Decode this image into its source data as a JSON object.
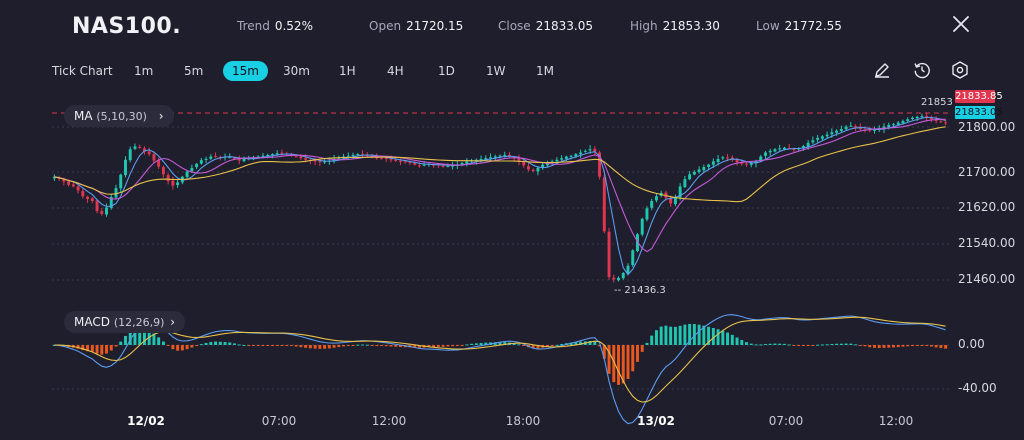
{
  "header": {
    "symbol": "NAS100.",
    "stats": [
      {
        "key": "Trend",
        "value": "0.52%"
      },
      {
        "key": "Open",
        "value": "21720.15"
      },
      {
        "key": "Close",
        "value": "21833.05"
      },
      {
        "key": "High",
        "value": "21853.30"
      },
      {
        "key": "Low",
        "value": "21772.55"
      }
    ]
  },
  "toolbar": {
    "chart_mode": "Tick Chart",
    "timeframes": [
      "1m",
      "5m",
      "15m",
      "30m",
      "1H",
      "4H",
      "1D",
      "1W",
      "1M"
    ],
    "active_timeframe": "15m",
    "icons": [
      "draw-pencil-icon",
      "reset-clock-icon",
      "settings-hex-icon"
    ]
  },
  "indicators": {
    "ma": {
      "name": "MA",
      "params": "(5,10,30)"
    },
    "macd": {
      "name": "MACD",
      "params": "(12,26,9)"
    }
  },
  "colors": {
    "up": "#1fc7b1",
    "down": "#e0364f",
    "ma5": "#5b9cf0",
    "ma10": "#c45ad8",
    "ma30": "#e6c14a",
    "macd_neg": "#e9591f",
    "accent": "#19cfe4",
    "bg": "#1f1e2c"
  },
  "chart_data": {
    "type": "candlestick",
    "price_axis": {
      "ticks": [
        "21800.00",
        "21700.00",
        "21620.00",
        "21540.00",
        "21460.00"
      ]
    },
    "macd_axis": {
      "ticks": [
        "0.00",
        "-40.00"
      ]
    },
    "time_axis": {
      "ticks": [
        "12/02",
        "07:00",
        "12:00",
        "18:00",
        "13/02",
        "07:00",
        "12:00"
      ],
      "bold": [
        "12/02",
        "13/02"
      ]
    },
    "price_tags": {
      "high_tag": "21833.85",
      "close_tag": "21833.05"
    },
    "annotations": {
      "high_label": "21853",
      "low_label": "21436.3"
    },
    "ylim": [
      21420,
      21870
    ],
    "close_series": [
      21700,
      21695,
      21688,
      21680,
      21676,
      21666,
      21652,
      21645,
      21640,
      21615,
      21608,
      21624,
      21650,
      21672,
      21705,
      21742,
      21768,
      21775,
      21772,
      21762,
      21756,
      21740,
      21725,
      21706,
      21689,
      21678,
      21686,
      21700,
      21713,
      21722,
      21732,
      21741,
      21744,
      21750,
      21751,
      21748,
      21750,
      21749,
      21744,
      21740,
      21744,
      21746,
      21748,
      21750,
      21752,
      21754,
      21756,
      21758,
      21758,
      21755,
      21752,
      21750,
      21746,
      21742,
      21740,
      21738,
      21736,
      21738,
      21740,
      21744,
      21747,
      21750,
      21752,
      21754,
      21756,
      21755,
      21752,
      21750,
      21748,
      21746,
      21744,
      21742,
      21740,
      21738,
      21736,
      21734,
      21730,
      21728,
      21730,
      21732,
      21730,
      21728,
      21726,
      21727,
      21728,
      21730,
      21734,
      21738,
      21740,
      21742,
      21744,
      21746,
      21748,
      21750,
      21752,
      21754,
      21750,
      21745,
      21738,
      21728,
      21718,
      21714,
      21722,
      21730,
      21734,
      21738,
      21742,
      21746,
      21750,
      21752,
      21756,
      21760,
      21764,
      21768,
      21762,
      21700,
      21565,
      21452,
      21446,
      21450,
      21462,
      21480,
      21518,
      21558,
      21596,
      21622,
      21640,
      21652,
      21660,
      21648,
      21634,
      21650,
      21676,
      21694,
      21706,
      21712,
      21718,
      21724,
      21730,
      21738,
      21744,
      21748,
      21746,
      21742,
      21736,
      21732,
      21730,
      21734,
      21740,
      21750,
      21760,
      21764,
      21768,
      21770,
      21772,
      21770,
      21768,
      21770,
      21776,
      21784,
      21790,
      21796,
      21800,
      21804,
      21810,
      21814,
      21818,
      21824,
      21826,
      21822,
      21818,
      21816,
      21814,
      21816,
      21820,
      21824,
      21828,
      21830,
      21834,
      21838,
      21842,
      21846,
      21848,
      21850,
      21846,
      21842,
      21838,
      21836,
      21834
    ]
  }
}
